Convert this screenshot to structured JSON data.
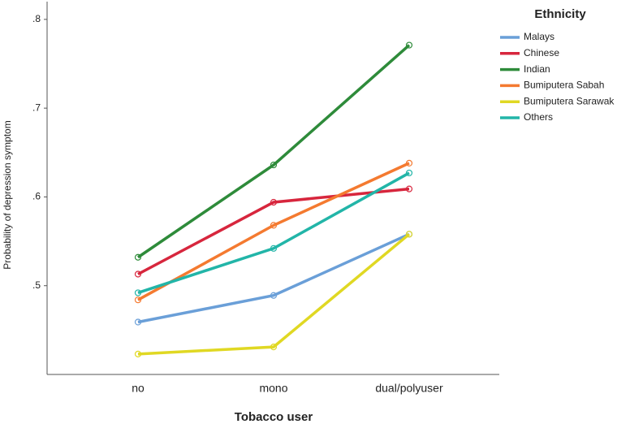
{
  "chart_data": {
    "type": "line",
    "xlabel": "Tobacco user",
    "ylabel": "Probability of depression symptom",
    "legend_title": "Ethnicity",
    "legend": "right",
    "categories": [
      "no",
      "mono",
      "dual/polyuser"
    ],
    "series": [
      {
        "name": "Malays",
        "color": "#6a9fd8",
        "values": [
          0.459,
          0.489,
          0.558
        ]
      },
      {
        "name": "Chinese",
        "color": "#d7263d",
        "values": [
          0.513,
          0.594,
          0.609
        ]
      },
      {
        "name": "Indian",
        "color": "#2e8b3a",
        "values": [
          0.532,
          0.636,
          0.771
        ]
      },
      {
        "name": "Bumiputera Sabah",
        "color": "#f47a30",
        "values": [
          0.484,
          0.568,
          0.638
        ]
      },
      {
        "name": "Bumiputera Sarawak",
        "color": "#e0d823",
        "values": [
          0.423,
          0.431,
          0.558
        ]
      },
      {
        "name": "Others",
        "color": "#22b5a8",
        "values": [
          0.492,
          0.542,
          0.627
        ]
      }
    ],
    "ylim": [
      0.4,
      0.82
    ],
    "yticks": [
      {
        "value": 0.5,
        "label": ".5"
      },
      {
        "value": 0.6,
        "label": ".6"
      },
      {
        "value": 0.7,
        "label": ".7"
      },
      {
        "value": 0.8,
        "label": ".8"
      }
    ],
    "grid": false
  }
}
